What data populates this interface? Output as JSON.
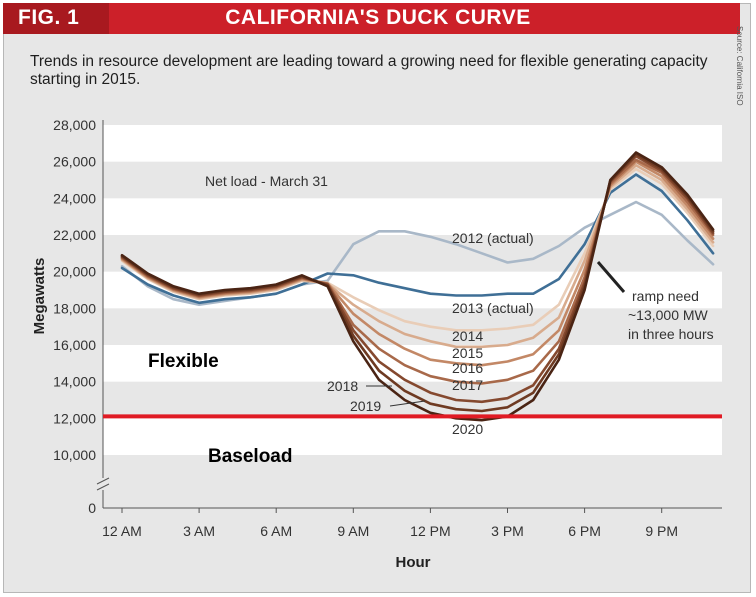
{
  "header": {
    "fig_label": "FIG. 1",
    "title": "CALIFORNIA'S DUCK CURVE",
    "source": "Source: California ISO"
  },
  "subtitle": "Trends in resource development are leading toward a growing need for flexible generating capacity starting in 2015.",
  "colors": {
    "header_red": "#cc2029",
    "overlay_line": "#e01b24",
    "series_2012": "#a9b8c8",
    "series_2013": "#3f6f96"
  },
  "chart_data": {
    "type": "line",
    "ylabel": "Megawatts",
    "xlabel": "Hour",
    "ylim": [
      0,
      28000
    ],
    "y_ticks": [
      0,
      10000,
      12000,
      14000,
      16000,
      18000,
      20000,
      22000,
      24000,
      26000,
      28000
    ],
    "y_tick_labels": [
      "0",
      "10,000",
      "12,000",
      "14,000",
      "16,000",
      "18,000",
      "20,000",
      "22,000",
      "24,000",
      "26,000",
      "28,000"
    ],
    "y_axis_break": true,
    "x_ticks": [
      0,
      3,
      6,
      9,
      12,
      15,
      18,
      21
    ],
    "x_tick_labels": [
      "12 AM",
      "3 AM",
      "6 AM",
      "9 AM",
      "12 PM",
      "3 PM",
      "6 PM",
      "9 PM"
    ],
    "grid": "alternating horizontal bands",
    "x": [
      0,
      1,
      2,
      3,
      4,
      5,
      6,
      7,
      8,
      9,
      10,
      11,
      12,
      13,
      14,
      15,
      16,
      17,
      18,
      19,
      20,
      21,
      22,
      23
    ],
    "series": [
      {
        "name": "2012 (actual)",
        "color": "#a9b8c8",
        "values": [
          20300,
          19200,
          18500,
          18200,
          18400,
          18600,
          18800,
          19300,
          19500,
          21500,
          22200,
          22200,
          21900,
          21500,
          21000,
          20500,
          20700,
          21400,
          22400,
          23100,
          23800,
          23100,
          21700,
          20400
        ]
      },
      {
        "name": "2013 (actual)",
        "color": "#3f6f96",
        "values": [
          20200,
          19300,
          18700,
          18300,
          18500,
          18600,
          18800,
          19300,
          19900,
          19800,
          19400,
          19100,
          18800,
          18700,
          18700,
          18800,
          18800,
          19600,
          21500,
          24300,
          25300,
          24400,
          22800,
          21000
        ]
      },
      {
        "name": "2014",
        "color": "#e9cdb7",
        "values": [
          20600,
          19600,
          18900,
          18500,
          18700,
          18800,
          19000,
          19500,
          19400,
          18600,
          17900,
          17300,
          17000,
          16800,
          16800,
          16900,
          17100,
          18200,
          21000,
          24500,
          25600,
          24800,
          23200,
          21400
        ]
      },
      {
        "name": "2015",
        "color": "#d8ab8d",
        "values": [
          20650,
          19650,
          18950,
          18550,
          18750,
          18850,
          19050,
          19550,
          19350,
          18200,
          17300,
          16600,
          16200,
          15900,
          15900,
          16000,
          16400,
          17500,
          20600,
          24600,
          25800,
          25000,
          23400,
          21600
        ]
      },
      {
        "name": "2016",
        "color": "#c38866",
        "values": [
          20700,
          19700,
          19000,
          18600,
          18800,
          18900,
          19100,
          19600,
          19350,
          17700,
          16600,
          15800,
          15200,
          15000,
          14900,
          15100,
          15500,
          16800,
          20100,
          24700,
          26000,
          25200,
          23600,
          21800
        ]
      },
      {
        "name": "2017",
        "color": "#a8694a",
        "values": [
          20750,
          19750,
          19050,
          18650,
          18850,
          18950,
          19150,
          19650,
          19350,
          17100,
          15800,
          14900,
          14300,
          14000,
          13900,
          14100,
          14600,
          16200,
          19700,
          24800,
          26100,
          25400,
          23800,
          22000
        ]
      },
      {
        "name": "2018",
        "color": "#85492f",
        "values": [
          20800,
          19800,
          19100,
          18700,
          18900,
          19000,
          19200,
          19700,
          19300,
          16800,
          15100,
          14100,
          13400,
          13000,
          12900,
          13100,
          13800,
          15800,
          19400,
          24900,
          26300,
          25500,
          24000,
          22100
        ]
      },
      {
        "name": "2019",
        "color": "#6e3a22",
        "values": [
          20850,
          19850,
          19150,
          18750,
          18950,
          19050,
          19250,
          19750,
          19250,
          16500,
          14600,
          13500,
          12800,
          12500,
          12400,
          12600,
          13400,
          15500,
          19200,
          24950,
          26400,
          25600,
          24100,
          22200
        ]
      },
      {
        "name": "2020",
        "color": "#4a2414",
        "values": [
          20900,
          19900,
          19200,
          18800,
          19000,
          19100,
          19300,
          19800,
          19200,
          16200,
          14100,
          13000,
          12300,
          12000,
          11900,
          12100,
          13000,
          15200,
          19000,
          25000,
          26500,
          25700,
          24200,
          22300
        ]
      }
    ],
    "annotations": {
      "net_load": "Net load - March 31",
      "label_2012": "2012 (actual)",
      "label_2013": "2013 (actual)",
      "label_2014": "2014",
      "label_2015": "2015",
      "label_2016": "2016",
      "label_2017": "2017",
      "label_2018": "2018",
      "label_2019": "2019",
      "label_2020": "2020",
      "ramp_line1": "ramp need",
      "ramp_line2": "~13,000 MW",
      "ramp_line3": "in three hours"
    },
    "overlay": {
      "threshold_mw": 12000,
      "above_label": "Flexible",
      "below_label": "Baseload"
    }
  }
}
